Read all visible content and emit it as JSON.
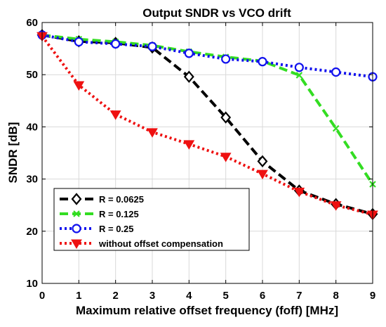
{
  "chart_data": {
    "type": "line",
    "title": "Output SNDR vs VCO drift",
    "xlabel": "Maximum relative offset frequency (foff) [MHz]",
    "ylabel": "SNDR [dB]",
    "xlim": [
      0,
      9
    ],
    "ylim": [
      10,
      60
    ],
    "xticks": [
      "0",
      "1",
      "2",
      "3",
      "4",
      "5",
      "6",
      "7",
      "8",
      "9"
    ],
    "yticks": [
      "10",
      "20",
      "30",
      "40",
      "50",
      "60"
    ],
    "grid": true,
    "legend_position": "bottom-left",
    "x": [
      0,
      1,
      2,
      3,
      4,
      5,
      6,
      7,
      8,
      9
    ],
    "series": [
      {
        "name": "R = 0.0625",
        "color": "#000000",
        "dash": "dash",
        "marker": "diamond",
        "values": [
          57.6,
          56.4,
          56.1,
          55.2,
          49.6,
          41.8,
          33.4,
          27.8,
          25.2,
          23.3
        ]
      },
      {
        "name": "R = 0.125",
        "color": "#33dd22",
        "dash": "dash",
        "marker": "x",
        "values": [
          57.6,
          56.8,
          56.3,
          55.6,
          54.4,
          53.4,
          52.6,
          49.9,
          39.7,
          29.0
        ]
      },
      {
        "name": "R = 0.25",
        "color": "#1111ee",
        "dash": "dot",
        "marker": "circle",
        "values": [
          57.6,
          56.3,
          55.9,
          55.4,
          54.1,
          53.0,
          52.5,
          51.4,
          50.5,
          49.6
        ]
      },
      {
        "name": "without offset compensation",
        "color": "#ee1111",
        "dash": "dot",
        "marker": "triangle-down",
        "values": [
          57.4,
          48.0,
          42.4,
          39.0,
          36.7,
          34.3,
          31.0,
          27.6,
          25.0,
          23.2
        ]
      }
    ]
  }
}
